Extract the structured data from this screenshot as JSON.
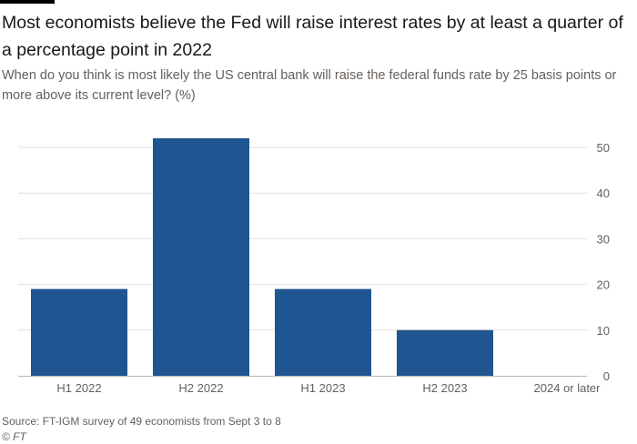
{
  "title": "Most economists believe the Fed will raise interest rates by at least a quarter of a percentage point in 2022",
  "subtitle": "When do you think is most likely the US central bank will raise the federal funds rate by 25 basis points or more above its current level? (%)",
  "source": "Source: FT-IGM survey of 49 economists from Sept 3 to 8",
  "copyright": "© FT",
  "colors": {
    "bar": "#1f5591",
    "grid": "#e6e0d8",
    "baseline": "#bdb4a8"
  },
  "chart_data": {
    "type": "bar",
    "categories": [
      "H1 2022",
      "H2 2022",
      "H1 2023",
      "H2 2023",
      "2024 or later"
    ],
    "values": [
      19,
      52,
      19,
      10,
      0
    ],
    "ylim": [
      0,
      52
    ],
    "yticks": [
      "0",
      "10",
      "20",
      "30",
      "40",
      "50"
    ],
    "ytick_values": [
      0,
      10,
      20,
      30,
      40,
      50
    ],
    "y_axis_side": "right",
    "grid": true,
    "xlabel": "",
    "ylabel": ""
  }
}
